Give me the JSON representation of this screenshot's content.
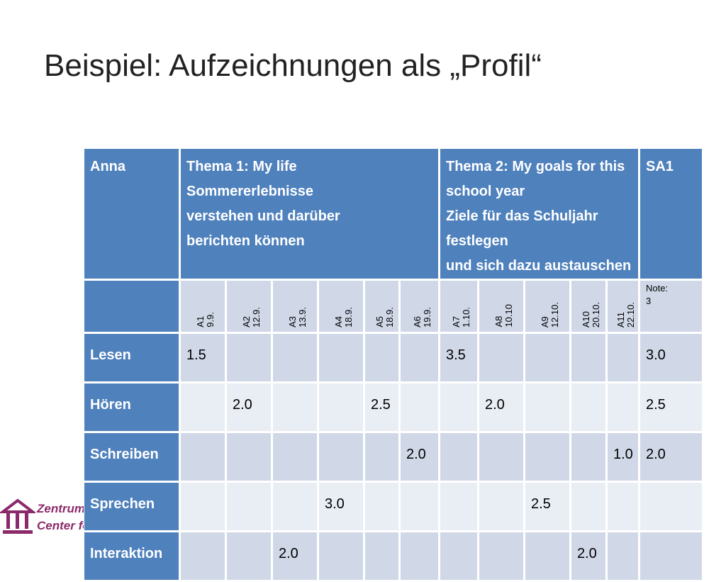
{
  "slide": {
    "title": "Beispiel: Aufzeichnungen als „Profil“"
  },
  "table": {
    "header": {
      "student": "Anna",
      "topic1_line1": "Thema 1: My life",
      "topic1_line2": "Sommererlebnisse",
      "topic1_line3": "verstehen und darüber",
      "topic1_line4": "berichten können",
      "topic2_line1": "Thema 2: My goals for this",
      "topic2_line2": "school year",
      "topic2_line3": "Ziele für das Schuljahr festlegen",
      "topic2_line4": "und sich dazu austauschen",
      "sa": "SA1"
    },
    "assignments": [
      {
        "label": "A1\n9.9."
      },
      {
        "label": "A2\n12.9."
      },
      {
        "label": "A3\n13.9."
      },
      {
        "label": "A4\n18.9."
      },
      {
        "label": "A5\n18.9."
      },
      {
        "label": "A6\n19.9."
      },
      {
        "label": "A7\n1.10."
      },
      {
        "label": "A8\n10.10"
      },
      {
        "label": "A9\n12.10."
      },
      {
        "label": "A10\n20.10."
      },
      {
        "label": "A11\n22.10."
      }
    ],
    "note_label_line1": "Note:",
    "note_label_line2": "3",
    "rows": [
      {
        "skill": "Lesen",
        "cells": [
          "1.5",
          "",
          "",
          "",
          "",
          "",
          "3.5",
          "",
          "",
          "",
          "",
          "3.0"
        ]
      },
      {
        "skill": "Hören",
        "cells": [
          "",
          "2.0",
          "",
          "",
          "2.5",
          "",
          "",
          "2.0",
          "",
          "",
          "",
          "2.5"
        ]
      },
      {
        "skill": "Schreiben",
        "cells": [
          "",
          "",
          "",
          "",
          "",
          "2.0",
          "",
          "",
          "",
          "",
          "1.0",
          "2.0"
        ]
      },
      {
        "skill": "Sprechen",
        "cells": [
          "",
          "",
          "",
          "3.0",
          "",
          "",
          "",
          "",
          "2.5",
          "",
          "",
          ""
        ]
      },
      {
        "skill": "Interaktion",
        "cells": [
          "",
          "",
          "2.0",
          "",
          "",
          "",
          "",
          "",
          "",
          "2.0",
          "",
          ""
        ]
      }
    ]
  },
  "logo": {
    "line1": "Zentrum",
    "line2": "Center fo"
  },
  "colors": {
    "header_blue": "#4f81bd",
    "cell_dark": "#d0d8e8",
    "cell_light": "#e9edf4",
    "logo_purple": "#8b2a6b"
  }
}
